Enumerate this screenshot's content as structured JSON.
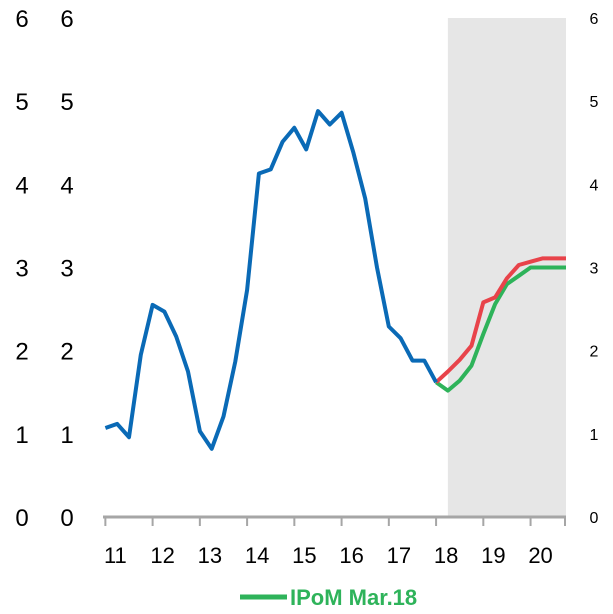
{
  "chart_data": {
    "type": "line",
    "title": "",
    "xlabel": "",
    "ylabel": "",
    "xlim": [
      10.95,
      20.75
    ],
    "ylim": [
      0,
      6
    ],
    "x_ticks": [
      "11",
      "12",
      "13",
      "14",
      "15",
      "16",
      "17",
      "18",
      "19",
      "20"
    ],
    "y_ticks": [
      "0",
      "1",
      "2",
      "3",
      "4",
      "5",
      "6"
    ],
    "grid": false,
    "shaded_region": {
      "x": [
        18.25,
        20.75
      ],
      "color": "#e6e6e6"
    },
    "series": [
      {
        "name": "",
        "color": "#0a6ab6",
        "x": [
          11.0,
          11.25,
          11.5,
          11.75,
          12.0,
          12.25,
          12.5,
          12.75,
          13.0,
          13.25,
          13.5,
          13.75,
          14.0,
          14.25,
          14.5,
          14.75,
          15.0,
          15.25,
          15.5,
          15.75,
          16.0,
          16.25,
          16.5,
          16.75,
          17.0,
          17.25,
          17.5,
          17.75,
          18.0
        ],
        "values": [
          1.07,
          1.12,
          0.96,
          1.95,
          2.55,
          2.47,
          2.17,
          1.75,
          1.03,
          0.82,
          1.21,
          1.87,
          2.73,
          4.13,
          4.18,
          4.51,
          4.68,
          4.42,
          4.88,
          4.72,
          4.86,
          4.38,
          3.83,
          3.0,
          2.29,
          2.15,
          1.88,
          1.88,
          1.62
        ]
      },
      {
        "name": "IPoM Mar.18",
        "color": "#2eb35a",
        "x": [
          18.0,
          18.25,
          18.5,
          18.75,
          19.0,
          19.25,
          19.5,
          19.75,
          20.0,
          20.25,
          20.5,
          20.75
        ],
        "values": [
          1.62,
          1.52,
          1.64,
          1.82,
          2.2,
          2.56,
          2.8,
          2.9,
          3.0,
          3.0,
          3.0,
          3.0
        ]
      },
      {
        "name": "",
        "color": "#e8434a",
        "x": [
          18.0,
          18.25,
          18.5,
          18.75,
          19.0,
          19.25,
          19.5,
          19.75,
          20.0,
          20.25,
          20.5,
          20.75
        ],
        "values": [
          1.62,
          1.75,
          1.89,
          2.06,
          2.58,
          2.64,
          2.87,
          3.03,
          3.07,
          3.11,
          3.11,
          3.11
        ]
      }
    ],
    "legend": {
      "position": "bottom",
      "entries": [
        "IPoM Mar.18"
      ]
    }
  }
}
